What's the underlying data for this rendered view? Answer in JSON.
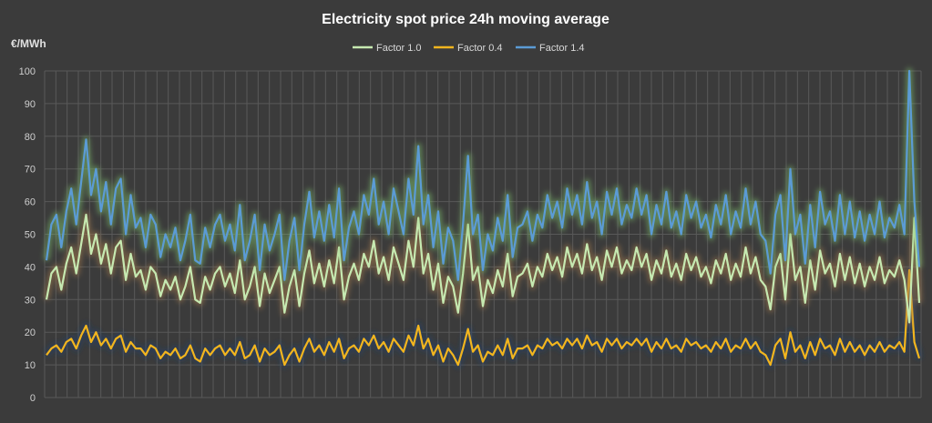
{
  "chart_data": {
    "type": "line",
    "title": "Electricity spot price 24h moving average",
    "ylabel": "€/MWh",
    "xlabel": "",
    "ylim": [
      0,
      100
    ],
    "yticks": [
      0,
      10,
      20,
      30,
      40,
      50,
      60,
      70,
      80,
      90,
      100
    ],
    "grid": true,
    "x_gridlines": true,
    "legend_position": "top-center",
    "colors": {
      "background": "#3b3b3b",
      "grid": "#595959",
      "text": "#e0e0e0"
    },
    "series": [
      {
        "name": "Factor 1.0",
        "color": "#c6e9b1",
        "glow": "#a37a4a",
        "values": [
          30,
          38,
          40,
          33,
          41,
          46,
          38,
          47,
          56,
          44,
          50,
          41,
          47,
          38,
          46,
          48,
          36,
          44,
          37,
          39,
          33,
          40,
          38,
          31,
          36,
          33,
          37,
          30,
          34,
          40,
          30,
          29,
          37,
          33,
          38,
          40,
          34,
          38,
          32,
          42,
          30,
          34,
          40,
          28,
          38,
          32,
          36,
          40,
          26,
          34,
          39,
          28,
          38,
          45,
          35,
          41,
          34,
          42,
          35,
          46,
          30,
          37,
          41,
          36,
          44,
          40,
          48,
          38,
          43,
          36,
          46,
          41,
          36,
          48,
          40,
          55,
          38,
          44,
          33,
          41,
          29,
          37,
          34,
          26,
          38,
          53,
          36,
          40,
          28,
          36,
          32,
          39,
          34,
          44,
          31,
          37,
          38,
          41,
          34,
          40,
          37,
          44,
          39,
          43,
          37,
          46,
          40,
          44,
          38,
          47,
          39,
          43,
          36,
          45,
          40,
          46,
          38,
          42,
          39,
          46,
          40,
          44,
          36,
          42,
          38,
          45,
          37,
          41,
          36,
          44,
          39,
          43,
          37,
          40,
          35,
          42,
          38,
          44,
          36,
          41,
          37,
          46,
          38,
          43,
          36,
          34,
          27,
          40,
          44,
          30,
          50,
          36,
          40,
          29,
          42,
          33,
          45,
          38,
          41,
          34,
          44,
          36,
          43,
          35,
          41,
          34,
          40,
          36,
          43,
          35,
          39,
          37,
          42,
          36,
          23,
          55,
          29
        ]
      },
      {
        "name": "Factor 0.4",
        "color": "#f2b51e",
        "glow": "#1d3f6e",
        "values": [
          13,
          15,
          16,
          14,
          17,
          18,
          15,
          19,
          22,
          17,
          20,
          16,
          18,
          15,
          18,
          19,
          14,
          17,
          15,
          15,
          13,
          16,
          15,
          12,
          14,
          13,
          15,
          12,
          13,
          16,
          12,
          11,
          15,
          13,
          15,
          16,
          13,
          15,
          13,
          17,
          12,
          13,
          16,
          11,
          15,
          13,
          14,
          16,
          10,
          13,
          15,
          11,
          15,
          18,
          14,
          16,
          13,
          17,
          14,
          18,
          12,
          15,
          16,
          14,
          18,
          16,
          19,
          15,
          17,
          14,
          18,
          16,
          14,
          19,
          16,
          22,
          15,
          18,
          13,
          16,
          11,
          15,
          13,
          10,
          15,
          21,
          14,
          16,
          11,
          14,
          13,
          16,
          13,
          18,
          12,
          15,
          15,
          16,
          13,
          16,
          15,
          18,
          16,
          17,
          15,
          18,
          16,
          18,
          15,
          19,
          16,
          17,
          14,
          18,
          16,
          18,
          15,
          17,
          16,
          18,
          16,
          18,
          14,
          17,
          15,
          18,
          15,
          16,
          14,
          18,
          16,
          17,
          15,
          16,
          14,
          17,
          15,
          18,
          14,
          16,
          15,
          18,
          15,
          17,
          14,
          13,
          10,
          16,
          18,
          12,
          20,
          14,
          16,
          12,
          17,
          13,
          18,
          15,
          16,
          13,
          18,
          14,
          17,
          14,
          16,
          13,
          16,
          14,
          17,
          14,
          16,
          15,
          17,
          14,
          39,
          17,
          12
        ]
      },
      {
        "name": "Factor 1.4",
        "color": "#5b9bd5",
        "glow": "#7ab86a",
        "values": [
          42,
          53,
          56,
          46,
          57,
          64,
          53,
          66,
          79,
          62,
          70,
          57,
          66,
          53,
          64,
          67,
          50,
          62,
          52,
          55,
          46,
          56,
          53,
          43,
          50,
          46,
          52,
          42,
          48,
          56,
          42,
          41,
          52,
          46,
          53,
          56,
          48,
          53,
          45,
          59,
          42,
          48,
          56,
          39,
          53,
          45,
          50,
          56,
          36,
          48,
          55,
          39,
          53,
          63,
          49,
          57,
          48,
          59,
          49,
          64,
          42,
          52,
          57,
          50,
          62,
          56,
          67,
          53,
          60,
          50,
          64,
          57,
          50,
          67,
          56,
          77,
          53,
          62,
          46,
          57,
          41,
          52,
          48,
          36,
          53,
          74,
          50,
          56,
          39,
          50,
          45,
          55,
          48,
          62,
          43,
          52,
          53,
          57,
          48,
          56,
          52,
          62,
          55,
          60,
          52,
          64,
          56,
          62,
          53,
          66,
          55,
          60,
          50,
          63,
          56,
          64,
          53,
          59,
          55,
          64,
          56,
          62,
          50,
          59,
          53,
          63,
          52,
          57,
          50,
          62,
          55,
          60,
          52,
          56,
          49,
          59,
          53,
          62,
          50,
          57,
          52,
          64,
          53,
          60,
          50,
          48,
          38,
          56,
          62,
          42,
          70,
          50,
          56,
          41,
          59,
          46,
          63,
          53,
          57,
          48,
          62,
          50,
          60,
          49,
          57,
          48,
          56,
          50,
          60,
          49,
          55,
          52,
          59,
          50,
          100,
          60,
          40
        ]
      }
    ]
  }
}
